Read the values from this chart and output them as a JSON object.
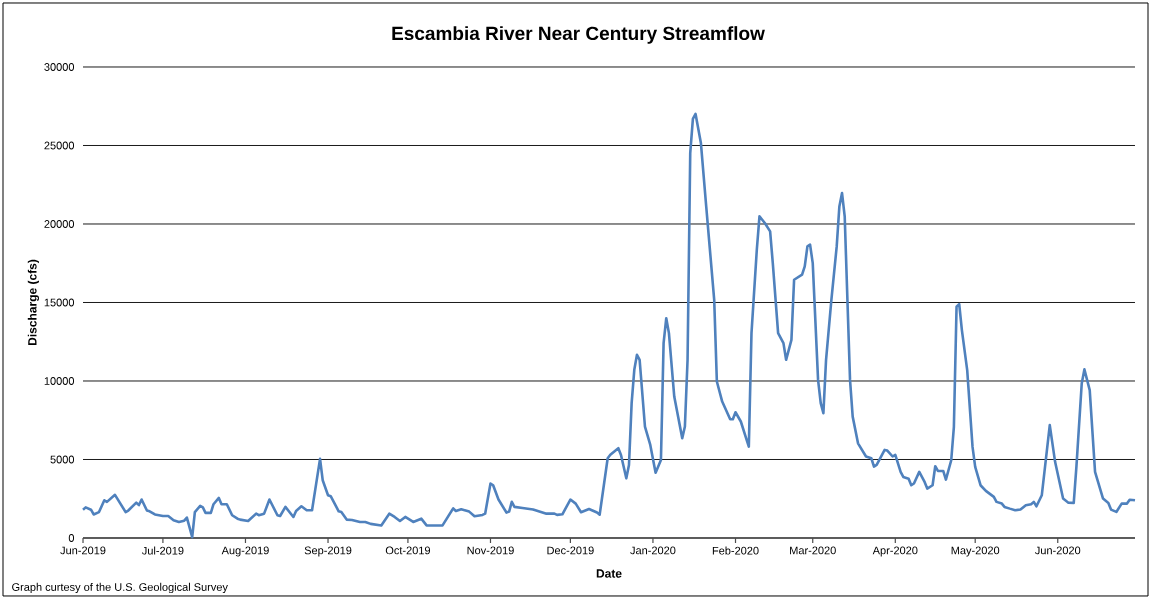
{
  "chart_data": {
    "type": "line",
    "title": "Escambia River Near Century Streamflow",
    "xlabel": "Date",
    "ylabel": "Discharge  (cfs)",
    "annotations": [
      "Graph curtesy of the U.S. Geological Survey"
    ],
    "xlim": [
      "2019-06-01",
      "2020-06-30"
    ],
    "xticks": [
      {
        "value": "2019-06-01",
        "label": "Jun-2019"
      },
      {
        "value": "2019-07-01",
        "label": "Jul-2019"
      },
      {
        "value": "2019-08-01",
        "label": "Aug-2019"
      },
      {
        "value": "2019-09-01",
        "label": "Sep-2019"
      },
      {
        "value": "2019-10-01",
        "label": "Oct-2019"
      },
      {
        "value": "2019-11-01",
        "label": "Nov-2019"
      },
      {
        "value": "2019-12-01",
        "label": "Dec-2019"
      },
      {
        "value": "2020-01-01",
        "label": "Jan-2020"
      },
      {
        "value": "2020-02-01",
        "label": "Feb-2020"
      },
      {
        "value": "2020-03-01",
        "label": "Mar-2020"
      },
      {
        "value": "2020-04-01",
        "label": "Apr-2020"
      },
      {
        "value": "2020-05-01",
        "label": "May-2020"
      },
      {
        "value": "2020-06-01",
        "label": "Jun-2020"
      }
    ],
    "ylim": [
      0,
      30000
    ],
    "yticks": [
      0,
      5000,
      10000,
      15000,
      20000,
      25000,
      30000
    ],
    "grid": "y",
    "series": [
      {
        "color": "#4f81bd",
        "line_style": "solid",
        "x": [
          "2019-06-01",
          "2019-06-02",
          "2019-06-04",
          "2019-06-05",
          "2019-06-07",
          "2019-06-09",
          "2019-06-10",
          "2019-06-13",
          "2019-06-17",
          "2019-06-18",
          "2019-06-21",
          "2019-06-22",
          "2019-06-23",
          "2019-06-25",
          "2019-06-26",
          "2019-06-28",
          "2019-07-01",
          "2019-07-03",
          "2019-07-05",
          "2019-07-07",
          "2019-07-09",
          "2019-07-10",
          "2019-07-12",
          "2019-07-13",
          "2019-07-15",
          "2019-07-16",
          "2019-07-17",
          "2019-07-19",
          "2019-07-20",
          "2019-07-22",
          "2019-07-23",
          "2019-07-25",
          "2019-07-27",
          "2019-07-29",
          "2019-07-30",
          "2019-08-02",
          "2019-08-05",
          "2019-08-06",
          "2019-08-08",
          "2019-08-10",
          "2019-08-13",
          "2019-08-14",
          "2019-08-16",
          "2019-08-19",
          "2019-08-20",
          "2019-08-22",
          "2019-08-24",
          "2019-08-26",
          "2019-08-29",
          "2019-08-30",
          "2019-09-01",
          "2019-09-02",
          "2019-09-05",
          "2019-09-06",
          "2019-09-08",
          "2019-09-10",
          "2019-09-13",
          "2019-09-15",
          "2019-09-17",
          "2019-09-21",
          "2019-09-24",
          "2019-09-26",
          "2019-09-28",
          "2019-09-30",
          "2019-10-03",
          "2019-10-06",
          "2019-10-08",
          "2019-10-14",
          "2019-10-18",
          "2019-10-19",
          "2019-10-21",
          "2019-10-24",
          "2019-10-26",
          "2019-10-29",
          "2019-10-30",
          "2019-11-01",
          "2019-11-02",
          "2019-11-04",
          "2019-11-07",
          "2019-11-08",
          "2019-11-09",
          "2019-11-10",
          "2019-11-13",
          "2019-11-17",
          "2019-11-22",
          "2019-11-25",
          "2019-11-26",
          "2019-11-28",
          "2019-12-01",
          "2019-12-03",
          "2019-12-05",
          "2019-12-08",
          "2019-12-11",
          "2019-12-12",
          "2019-12-15",
          "2019-12-16",
          "2019-12-19",
          "2019-12-20",
          "2019-12-22",
          "2019-12-23",
          "2019-12-24",
          "2019-12-25",
          "2019-12-26",
          "2019-12-27",
          "2019-12-29",
          "2019-12-31",
          "2020-01-02",
          "2020-01-04",
          "2020-01-05",
          "2020-01-06",
          "2020-01-07",
          "2020-01-09",
          "2020-01-12",
          "2020-01-13",
          "2020-01-14",
          "2020-01-15",
          "2020-01-16",
          "2020-01-17",
          "2020-01-19",
          "2020-01-21",
          "2020-01-24",
          "2020-01-25",
          "2020-01-27",
          "2020-01-30",
          "2020-01-31",
          "2020-02-01",
          "2020-02-03",
          "2020-02-05",
          "2020-02-06",
          "2020-02-07",
          "2020-02-09",
          "2020-02-10",
          "2020-02-12",
          "2020-02-14",
          "2020-02-15",
          "2020-02-17",
          "2020-02-19",
          "2020-02-20",
          "2020-02-22",
          "2020-02-23",
          "2020-02-26",
          "2020-02-27",
          "2020-02-28",
          "2020-02-29",
          "2020-03-01",
          "2020-03-03",
          "2020-03-04",
          "2020-03-05",
          "2020-03-06",
          "2020-03-08",
          "2020-03-10",
          "2020-03-11",
          "2020-03-12",
          "2020-03-13",
          "2020-03-15",
          "2020-03-16",
          "2020-03-18",
          "2020-03-21",
          "2020-03-23",
          "2020-03-24",
          "2020-03-25",
          "2020-03-28",
          "2020-03-29",
          "2020-03-31",
          "2020-04-01",
          "2020-04-03",
          "2020-04-04",
          "2020-04-06",
          "2020-04-07",
          "2020-04-08",
          "2020-04-10",
          "2020-04-12",
          "2020-04-13",
          "2020-04-15",
          "2020-04-16",
          "2020-04-17",
          "2020-04-19",
          "2020-04-20",
          "2020-04-22",
          "2020-04-23",
          "2020-04-24",
          "2020-04-25",
          "2020-04-26",
          "2020-04-28",
          "2020-04-30",
          "2020-05-01",
          "2020-05-03",
          "2020-05-05",
          "2020-05-08",
          "2020-05-09",
          "2020-05-11",
          "2020-05-12",
          "2020-05-14",
          "2020-05-16",
          "2020-05-18",
          "2020-05-20",
          "2020-05-22",
          "2020-05-23",
          "2020-05-24",
          "2020-05-26",
          "2020-05-29",
          "2020-05-31",
          "2020-06-03",
          "2020-06-05",
          "2020-06-07",
          "2020-06-08",
          "2020-06-10",
          "2020-06-11",
          "2020-06-13",
          "2020-06-15",
          "2020-06-18",
          "2020-06-20",
          "2020-06-21",
          "2020-06-23",
          "2020-06-25",
          "2020-06-27",
          "2020-06-28",
          "2020-06-30"
        ],
        "values": [
          1800,
          1950,
          1800,
          1500,
          1650,
          2400,
          2300,
          2750,
          1650,
          1750,
          2250,
          2100,
          2450,
          1750,
          1700,
          1500,
          1400,
          1400,
          1130,
          1020,
          1100,
          1300,
          50,
          1650,
          2050,
          1950,
          1600,
          1600,
          2150,
          2550,
          2150,
          2150,
          1450,
          1230,
          1170,
          1080,
          1550,
          1450,
          1550,
          2450,
          1450,
          1400,
          1980,
          1340,
          1720,
          2020,
          1770,
          1770,
          5040,
          3680,
          2720,
          2660,
          1700,
          1650,
          1170,
          1150,
          1020,
          1020,
          900,
          800,
          1550,
          1340,
          1080,
          1340,
          1020,
          1230,
          800,
          800,
          1890,
          1720,
          1830,
          1680,
          1380,
          1470,
          1550,
          3470,
          3360,
          2450,
          1620,
          1680,
          2300,
          1980,
          1910,
          1810,
          1550,
          1550,
          1470,
          1510,
          2450,
          2190,
          1640,
          1850,
          1620,
          1490,
          5080,
          5300,
          5720,
          5290,
          3800,
          4650,
          8590,
          10710,
          11670,
          11350,
          7100,
          5930,
          4160,
          4970,
          12410,
          14000,
          13050,
          9010,
          6350,
          7100,
          11350,
          24520,
          26690,
          27010,
          25160,
          21120,
          15170,
          9970,
          8690,
          7560,
          7560,
          8010,
          7420,
          6350,
          5820,
          13050,
          18360,
          20490,
          20060,
          19530,
          17510,
          13050,
          12410,
          11350,
          12620,
          16450,
          16770,
          17300,
          18570,
          18680,
          17510,
          10070,
          8590,
          7950,
          11350,
          15170,
          18570,
          21120,
          21970,
          20490,
          10070,
          7730,
          6030,
          5190,
          5080,
          4550,
          4650,
          5610,
          5570,
          5190,
          5290,
          4210,
          3890,
          3780,
          3360,
          3470,
          4210,
          3570,
          3150,
          3360,
          4570,
          4270,
          4270,
          3720,
          4950,
          7080,
          14730,
          14900,
          13240,
          10690,
          5800,
          4530,
          3360,
          3000,
          2620,
          2300,
          2190,
          1980,
          1870,
          1770,
          1810,
          2080,
          2150,
          2300,
          2020,
          2720,
          7190,
          4850,
          2510,
          2250,
          2230,
          4530,
          9840,
          10740,
          9420,
          4210,
          2510,
          2230,
          1810,
          1660,
          2190,
          2190,
          2440,
          2400
        ]
      }
    ]
  }
}
